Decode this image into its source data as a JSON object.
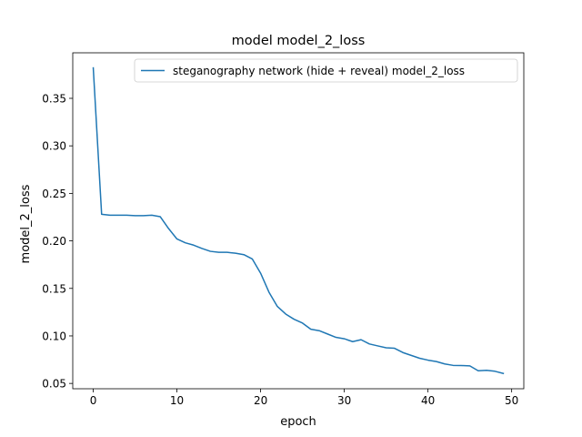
{
  "chart_data": {
    "type": "line",
    "title": "model model_2_loss",
    "xlabel": "epoch",
    "ylabel": "model_2_loss",
    "xlim": [
      -2.45,
      51.45
    ],
    "ylim": [
      0.0444,
      0.3979
    ],
    "xticks": [
      0,
      10,
      20,
      30,
      40,
      50
    ],
    "xtick_labels": [
      "0",
      "10",
      "20",
      "30",
      "40",
      "50"
    ],
    "yticks": [
      0.05,
      0.1,
      0.15,
      0.2,
      0.25,
      0.3,
      0.35
    ],
    "ytick_labels": [
      "0.05",
      "0.10",
      "0.15",
      "0.20",
      "0.25",
      "0.30",
      "0.35"
    ],
    "grid": false,
    "legend_position": "top-right",
    "series": [
      {
        "name": "steganography network (hide + reveal) model_2_loss",
        "color": "#1f77b4",
        "x": [
          0,
          1,
          2,
          3,
          4,
          5,
          6,
          7,
          8,
          9,
          10,
          11,
          12,
          13,
          14,
          15,
          16,
          17,
          18,
          19,
          20,
          21,
          22,
          23,
          24,
          25,
          26,
          27,
          28,
          29,
          30,
          31,
          32,
          33,
          34,
          35,
          36,
          37,
          38,
          39,
          40,
          41,
          42,
          43,
          44,
          45,
          46,
          47,
          48,
          49
        ],
        "y": [
          0.382,
          0.228,
          0.227,
          0.227,
          0.227,
          0.2265,
          0.2265,
          0.227,
          0.2255,
          0.213,
          0.202,
          0.198,
          0.1955,
          0.192,
          0.189,
          0.188,
          0.188,
          0.187,
          0.1855,
          0.181,
          0.166,
          0.146,
          0.131,
          0.123,
          0.1175,
          0.1135,
          0.107,
          0.1055,
          0.102,
          0.0985,
          0.097,
          0.094,
          0.096,
          0.0915,
          0.0895,
          0.0875,
          0.087,
          0.0825,
          0.0795,
          0.0765,
          0.0745,
          0.073,
          0.0705,
          0.069,
          0.0688,
          0.0685,
          0.0633,
          0.0638,
          0.0628,
          0.0605
        ]
      }
    ]
  }
}
